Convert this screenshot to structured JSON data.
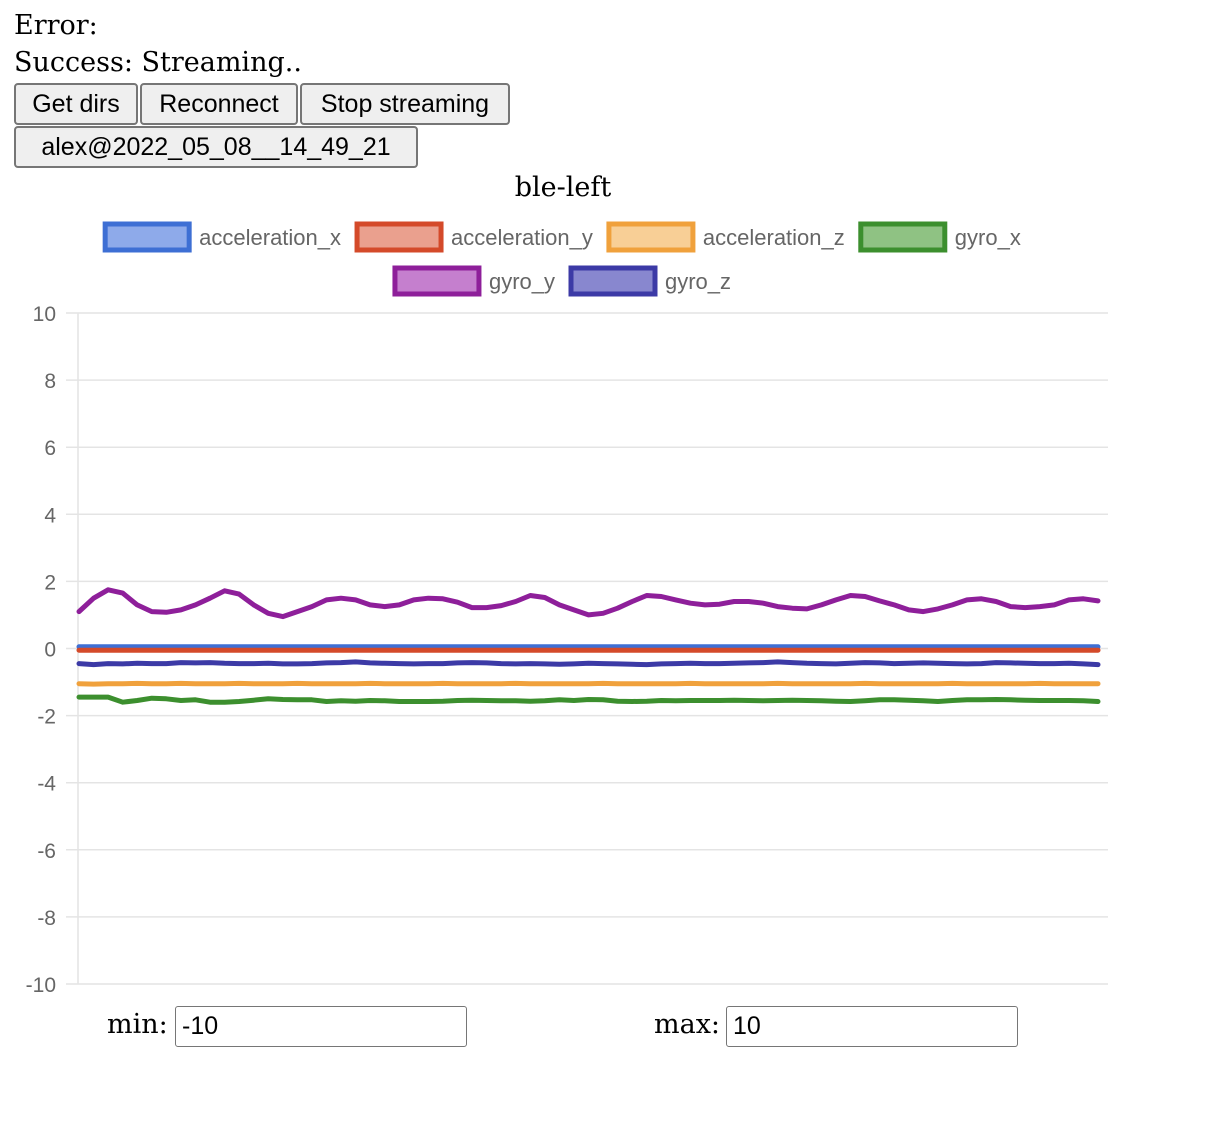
{
  "status": {
    "error_label": "Error:",
    "success_label": "Success: Streaming.."
  },
  "buttons": {
    "get_dirs": "Get dirs",
    "reconnect": "Reconnect",
    "stop_streaming": "Stop streaming",
    "directory": "alex@2022_05_08__14_49_21"
  },
  "range_controls": {
    "min_label": "min:",
    "min_value": "-10",
    "max_label": "max:",
    "max_value": "10"
  },
  "chart_data": {
    "type": "line",
    "title": "ble-left",
    "ylim": [
      -10,
      10
    ],
    "yticks": [
      10,
      8,
      6,
      4,
      2,
      0,
      -2,
      -4,
      -6,
      -8,
      -10
    ],
    "grid": true,
    "legend_position": "top",
    "xlabel": "",
    "ylabel": "",
    "series": [
      {
        "name": "acceleration_x",
        "color": "#3e6fd4",
        "fill": "#8eaaea",
        "values": [
          0.05,
          0.05,
          0.05,
          0.05,
          0.05,
          0.05,
          0.05,
          0.05,
          0.05,
          0.05,
          0.05,
          0.05,
          0.05,
          0.05,
          0.05,
          0.05,
          0.05,
          0.05,
          0.05,
          0.05,
          0.05,
          0.05,
          0.05,
          0.05,
          0.05,
          0.05,
          0.05,
          0.05,
          0.05,
          0.05,
          0.05,
          0.05,
          0.05,
          0.05,
          0.05,
          0.05,
          0.05,
          0.05,
          0.05,
          0.05,
          0.05,
          0.05,
          0.05,
          0.05,
          0.05,
          0.05,
          0.05,
          0.05,
          0.05,
          0.05,
          0.05,
          0.05,
          0.05,
          0.05,
          0.05,
          0.05,
          0.05,
          0.05,
          0.05,
          0.05,
          0.05,
          0.05,
          0.05,
          0.05,
          0.05,
          0.05,
          0.05,
          0.05,
          0.05,
          0.05,
          0.05
        ]
      },
      {
        "name": "acceleration_y",
        "color": "#d44a2a",
        "fill": "#eaa08e",
        "values": [
          -0.05,
          -0.05,
          -0.05,
          -0.05,
          -0.05,
          -0.05,
          -0.05,
          -0.05,
          -0.05,
          -0.05,
          -0.05,
          -0.05,
          -0.05,
          -0.05,
          -0.05,
          -0.05,
          -0.05,
          -0.05,
          -0.05,
          -0.05,
          -0.05,
          -0.05,
          -0.05,
          -0.05,
          -0.05,
          -0.05,
          -0.05,
          -0.05,
          -0.05,
          -0.05,
          -0.05,
          -0.05,
          -0.05,
          -0.05,
          -0.05,
          -0.05,
          -0.05,
          -0.05,
          -0.05,
          -0.05,
          -0.05,
          -0.05,
          -0.05,
          -0.05,
          -0.05,
          -0.05,
          -0.05,
          -0.05,
          -0.05,
          -0.05,
          -0.05,
          -0.05,
          -0.05,
          -0.05,
          -0.05,
          -0.05,
          -0.05,
          -0.05,
          -0.05,
          -0.05,
          -0.05,
          -0.05,
          -0.05,
          -0.05,
          -0.05,
          -0.05,
          -0.05,
          -0.05,
          -0.05,
          -0.05,
          -0.05
        ]
      },
      {
        "name": "acceleration_z",
        "color": "#f0a13c",
        "fill": "#f8cf96",
        "values": [
          -1.05,
          -1.06,
          -1.05,
          -1.05,
          -1.04,
          -1.05,
          -1.05,
          -1.04,
          -1.05,
          -1.05,
          -1.05,
          -1.04,
          -1.05,
          -1.05,
          -1.05,
          -1.04,
          -1.05,
          -1.05,
          -1.05,
          -1.05,
          -1.04,
          -1.05,
          -1.05,
          -1.05,
          -1.05,
          -1.04,
          -1.05,
          -1.05,
          -1.05,
          -1.05,
          -1.04,
          -1.05,
          -1.05,
          -1.05,
          -1.05,
          -1.05,
          -1.04,
          -1.05,
          -1.05,
          -1.05,
          -1.05,
          -1.05,
          -1.04,
          -1.05,
          -1.05,
          -1.05,
          -1.05,
          -1.05,
          -1.04,
          -1.05,
          -1.05,
          -1.05,
          -1.05,
          -1.05,
          -1.04,
          -1.05,
          -1.05,
          -1.05,
          -1.05,
          -1.05,
          -1.04,
          -1.05,
          -1.05,
          -1.05,
          -1.05,
          -1.05,
          -1.04,
          -1.05,
          -1.05,
          -1.05,
          -1.05
        ]
      },
      {
        "name": "gyro_x",
        "color": "#3c8f2e",
        "fill": "#8fc283",
        "values": [
          -1.45,
          -1.45,
          -1.45,
          -1.6,
          -1.55,
          -1.48,
          -1.5,
          -1.55,
          -1.53,
          -1.6,
          -1.6,
          -1.58,
          -1.54,
          -1.5,
          -1.52,
          -1.53,
          -1.53,
          -1.58,
          -1.56,
          -1.57,
          -1.55,
          -1.56,
          -1.58,
          -1.58,
          -1.58,
          -1.57,
          -1.55,
          -1.54,
          -1.55,
          -1.56,
          -1.56,
          -1.57,
          -1.56,
          -1.53,
          -1.55,
          -1.52,
          -1.53,
          -1.57,
          -1.58,
          -1.57,
          -1.55,
          -1.56,
          -1.55,
          -1.55,
          -1.55,
          -1.54,
          -1.55,
          -1.56,
          -1.55,
          -1.54,
          -1.55,
          -1.56,
          -1.57,
          -1.58,
          -1.56,
          -1.53,
          -1.53,
          -1.54,
          -1.56,
          -1.58,
          -1.55,
          -1.53,
          -1.53,
          -1.52,
          -1.53,
          -1.54,
          -1.55,
          -1.55,
          -1.55,
          -1.56,
          -1.58
        ]
      },
      {
        "name": "gyro_y",
        "color": "#8e1f9a",
        "fill": "#c57fce",
        "values": [
          1.1,
          1.5,
          1.75,
          1.65,
          1.3,
          1.1,
          1.08,
          1.15,
          1.3,
          1.5,
          1.72,
          1.62,
          1.3,
          1.05,
          0.95,
          1.1,
          1.25,
          1.45,
          1.5,
          1.45,
          1.3,
          1.25,
          1.3,
          1.45,
          1.5,
          1.48,
          1.38,
          1.22,
          1.22,
          1.28,
          1.4,
          1.58,
          1.52,
          1.3,
          1.15,
          1.0,
          1.05,
          1.2,
          1.4,
          1.58,
          1.55,
          1.45,
          1.35,
          1.3,
          1.32,
          1.4,
          1.4,
          1.35,
          1.25,
          1.2,
          1.18,
          1.3,
          1.45,
          1.58,
          1.55,
          1.42,
          1.3,
          1.15,
          1.1,
          1.18,
          1.3,
          1.45,
          1.48,
          1.4,
          1.25,
          1.22,
          1.25,
          1.3,
          1.45,
          1.48,
          1.42
        ]
      },
      {
        "name": "gyro_z",
        "color": "#3c3aa6",
        "fill": "#8887cf",
        "values": [
          -0.45,
          -0.48,
          -0.45,
          -0.46,
          -0.44,
          -0.45,
          -0.45,
          -0.42,
          -0.43,
          -0.42,
          -0.44,
          -0.45,
          -0.45,
          -0.44,
          -0.46,
          -0.46,
          -0.45,
          -0.43,
          -0.42,
          -0.4,
          -0.43,
          -0.44,
          -0.45,
          -0.46,
          -0.45,
          -0.45,
          -0.43,
          -0.42,
          -0.43,
          -0.45,
          -0.46,
          -0.45,
          -0.46,
          -0.47,
          -0.46,
          -0.44,
          -0.45,
          -0.46,
          -0.47,
          -0.48,
          -0.46,
          -0.45,
          -0.44,
          -0.45,
          -0.45,
          -0.44,
          -0.43,
          -0.42,
          -0.4,
          -0.42,
          -0.44,
          -0.45,
          -0.46,
          -0.44,
          -0.42,
          -0.43,
          -0.45,
          -0.44,
          -0.43,
          -0.44,
          -0.45,
          -0.46,
          -0.45,
          -0.42,
          -0.43,
          -0.44,
          -0.45,
          -0.45,
          -0.44,
          -0.46,
          -0.48
        ]
      }
    ]
  }
}
